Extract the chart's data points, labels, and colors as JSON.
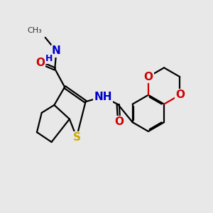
{
  "background_color": "#e8e8e8",
  "atom_colors": {
    "C": "#000000",
    "N": "#0000cc",
    "O": "#cc0000",
    "S": "#ccaa00",
    "H": "#000000"
  },
  "bond_lw": 1.6,
  "dbo": 0.055,
  "figsize": [
    3.0,
    3.0
  ],
  "dpi": 100,
  "xlim": [
    0,
    10
  ],
  "ylim": [
    0,
    10
  ]
}
